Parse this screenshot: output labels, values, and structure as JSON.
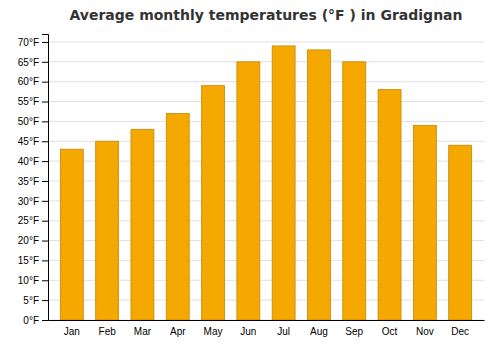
{
  "chart_data": {
    "type": "bar",
    "title": "Average monthly temperatures (°F ) in Gradignan",
    "categories": [
      "Jan",
      "Feb",
      "Mar",
      "Apr",
      "May",
      "Jun",
      "Jul",
      "Aug",
      "Sep",
      "Oct",
      "Nov",
      "Dec"
    ],
    "values": [
      43,
      45,
      48,
      52,
      59,
      65,
      69,
      68,
      65,
      58,
      49,
      44
    ],
    "color": "#F5A800",
    "ylim": [
      0,
      72
    ],
    "yticks": [
      {
        "value": 0,
        "label": "0°F"
      },
      {
        "value": 5,
        "label": "5°F"
      },
      {
        "value": 10,
        "label": "10°F"
      },
      {
        "value": 15,
        "label": "15°F"
      },
      {
        "value": 20,
        "label": "20°F"
      },
      {
        "value": 25,
        "label": "25°F"
      },
      {
        "value": 30,
        "label": "30°F"
      },
      {
        "value": 35,
        "label": "35°F"
      },
      {
        "value": 40,
        "label": "40°F"
      },
      {
        "value": 45,
        "label": "45°F"
      },
      {
        "value": 50,
        "label": "50°F"
      },
      {
        "value": 55,
        "label": "55°F"
      },
      {
        "value": 60,
        "label": "60°F"
      },
      {
        "value": 65,
        "label": "65°F"
      },
      {
        "value": 70,
        "label": "70°F"
      }
    ],
    "grid": true
  }
}
